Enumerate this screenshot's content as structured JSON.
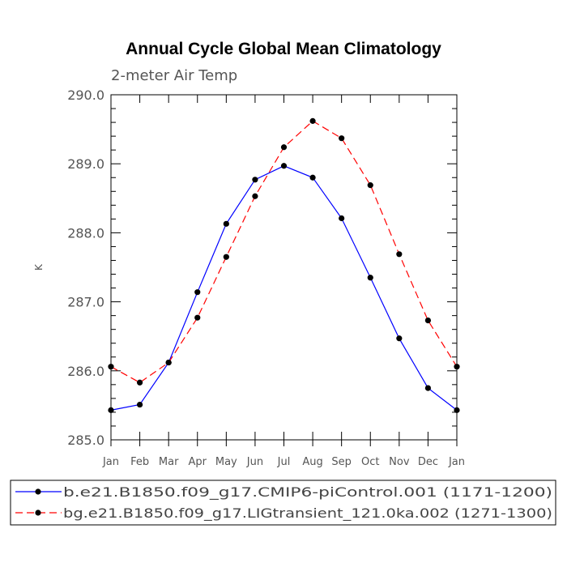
{
  "chart_data": {
    "type": "line",
    "title": "Annual Cycle Global Mean Climatology",
    "subtitle": "2-meter Air Temp",
    "ylabel": "K",
    "xlabel": "",
    "ylim": [
      285.0,
      290.0
    ],
    "yticks": [
      "285.0",
      "286.0",
      "287.0",
      "288.0",
      "289.0",
      "290.0"
    ],
    "categories": [
      "Jan",
      "Feb",
      "Mar",
      "Apr",
      "May",
      "Jun",
      "Jul",
      "Aug",
      "Sep",
      "Oct",
      "Nov",
      "Dec",
      "Jan"
    ],
    "grid": false,
    "legend_position": "bottom",
    "series": [
      {
        "name": "b.e21.B1850.f09_g17.CMIP6-piControl.001 (1171-1200)",
        "color": "#0000ff",
        "dash": "solid",
        "marker": "filled-circle",
        "values": [
          285.43,
          285.51,
          286.12,
          287.14,
          288.13,
          288.77,
          288.97,
          288.8,
          288.21,
          287.35,
          286.47,
          285.75,
          285.43
        ]
      },
      {
        "name": "bg.e21.B1850.f09_g17.LIGtransient_121.0ka.002 (1271-1300)",
        "color": "#ff0000",
        "dash": "dashed",
        "marker": "filled-circle",
        "values": [
          286.06,
          285.83,
          286.12,
          286.77,
          287.65,
          288.53,
          289.24,
          289.62,
          289.37,
          288.69,
          287.69,
          286.73,
          286.06
        ]
      }
    ]
  }
}
